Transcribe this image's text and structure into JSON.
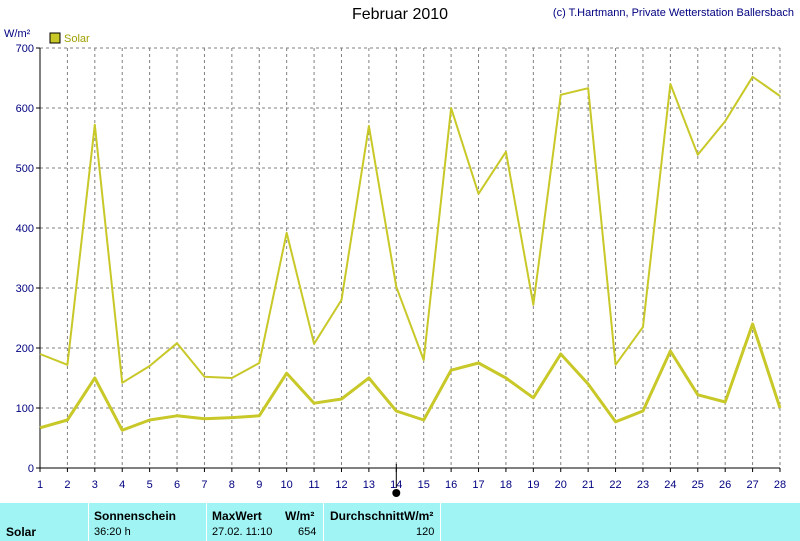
{
  "header": {
    "title": "Februar 2010",
    "credit": "(c) T.Hartmann, Private Wetterstation Ballersbach"
  },
  "colors": {
    "series": "#c8c828",
    "legend_box": "#c8c828",
    "axis": "#000000",
    "grid": "#808080",
    "stats_bg": "#a0f4f4"
  },
  "chart_data": {
    "type": "line",
    "ylabel": "W/m²",
    "ylim": [
      0,
      700
    ],
    "yticks": [
      0,
      100,
      200,
      300,
      400,
      500,
      600,
      700
    ],
    "x": [
      1,
      2,
      3,
      4,
      5,
      6,
      7,
      8,
      9,
      10,
      11,
      12,
      13,
      14,
      15,
      16,
      17,
      18,
      19,
      20,
      21,
      22,
      23,
      24,
      25,
      26,
      27,
      28
    ],
    "xlim": [
      1,
      28
    ],
    "grid": true,
    "legend": "top-left",
    "legend_label": "Solar",
    "marker_x": 14,
    "series": [
      {
        "values": [
          190,
          172,
          572,
          142,
          170,
          208,
          152,
          150,
          175,
          392,
          207,
          280,
          570,
          302,
          180,
          600,
          457,
          527,
          272,
          622,
          633,
          172,
          235,
          640,
          522,
          578,
          652,
          620
        ]
      },
      {
        "values": [
          67,
          80,
          150,
          63,
          80,
          87,
          82,
          84,
          87,
          158,
          108,
          115,
          150,
          95,
          80,
          163,
          175,
          150,
          117,
          190,
          140,
          77,
          95,
          195,
          122,
          110,
          240,
          100
        ]
      }
    ]
  },
  "stats": {
    "row_label": "Solar",
    "sunshine_label": "Sonnenschein",
    "sunshine_value": "36:20 h",
    "max_label": "MaxWert",
    "max_unit": "W/m²",
    "max_time": "27.02.  11:10",
    "max_value": "654",
    "avg_label": "DurchschnittW/m²",
    "avg_value": "120"
  }
}
